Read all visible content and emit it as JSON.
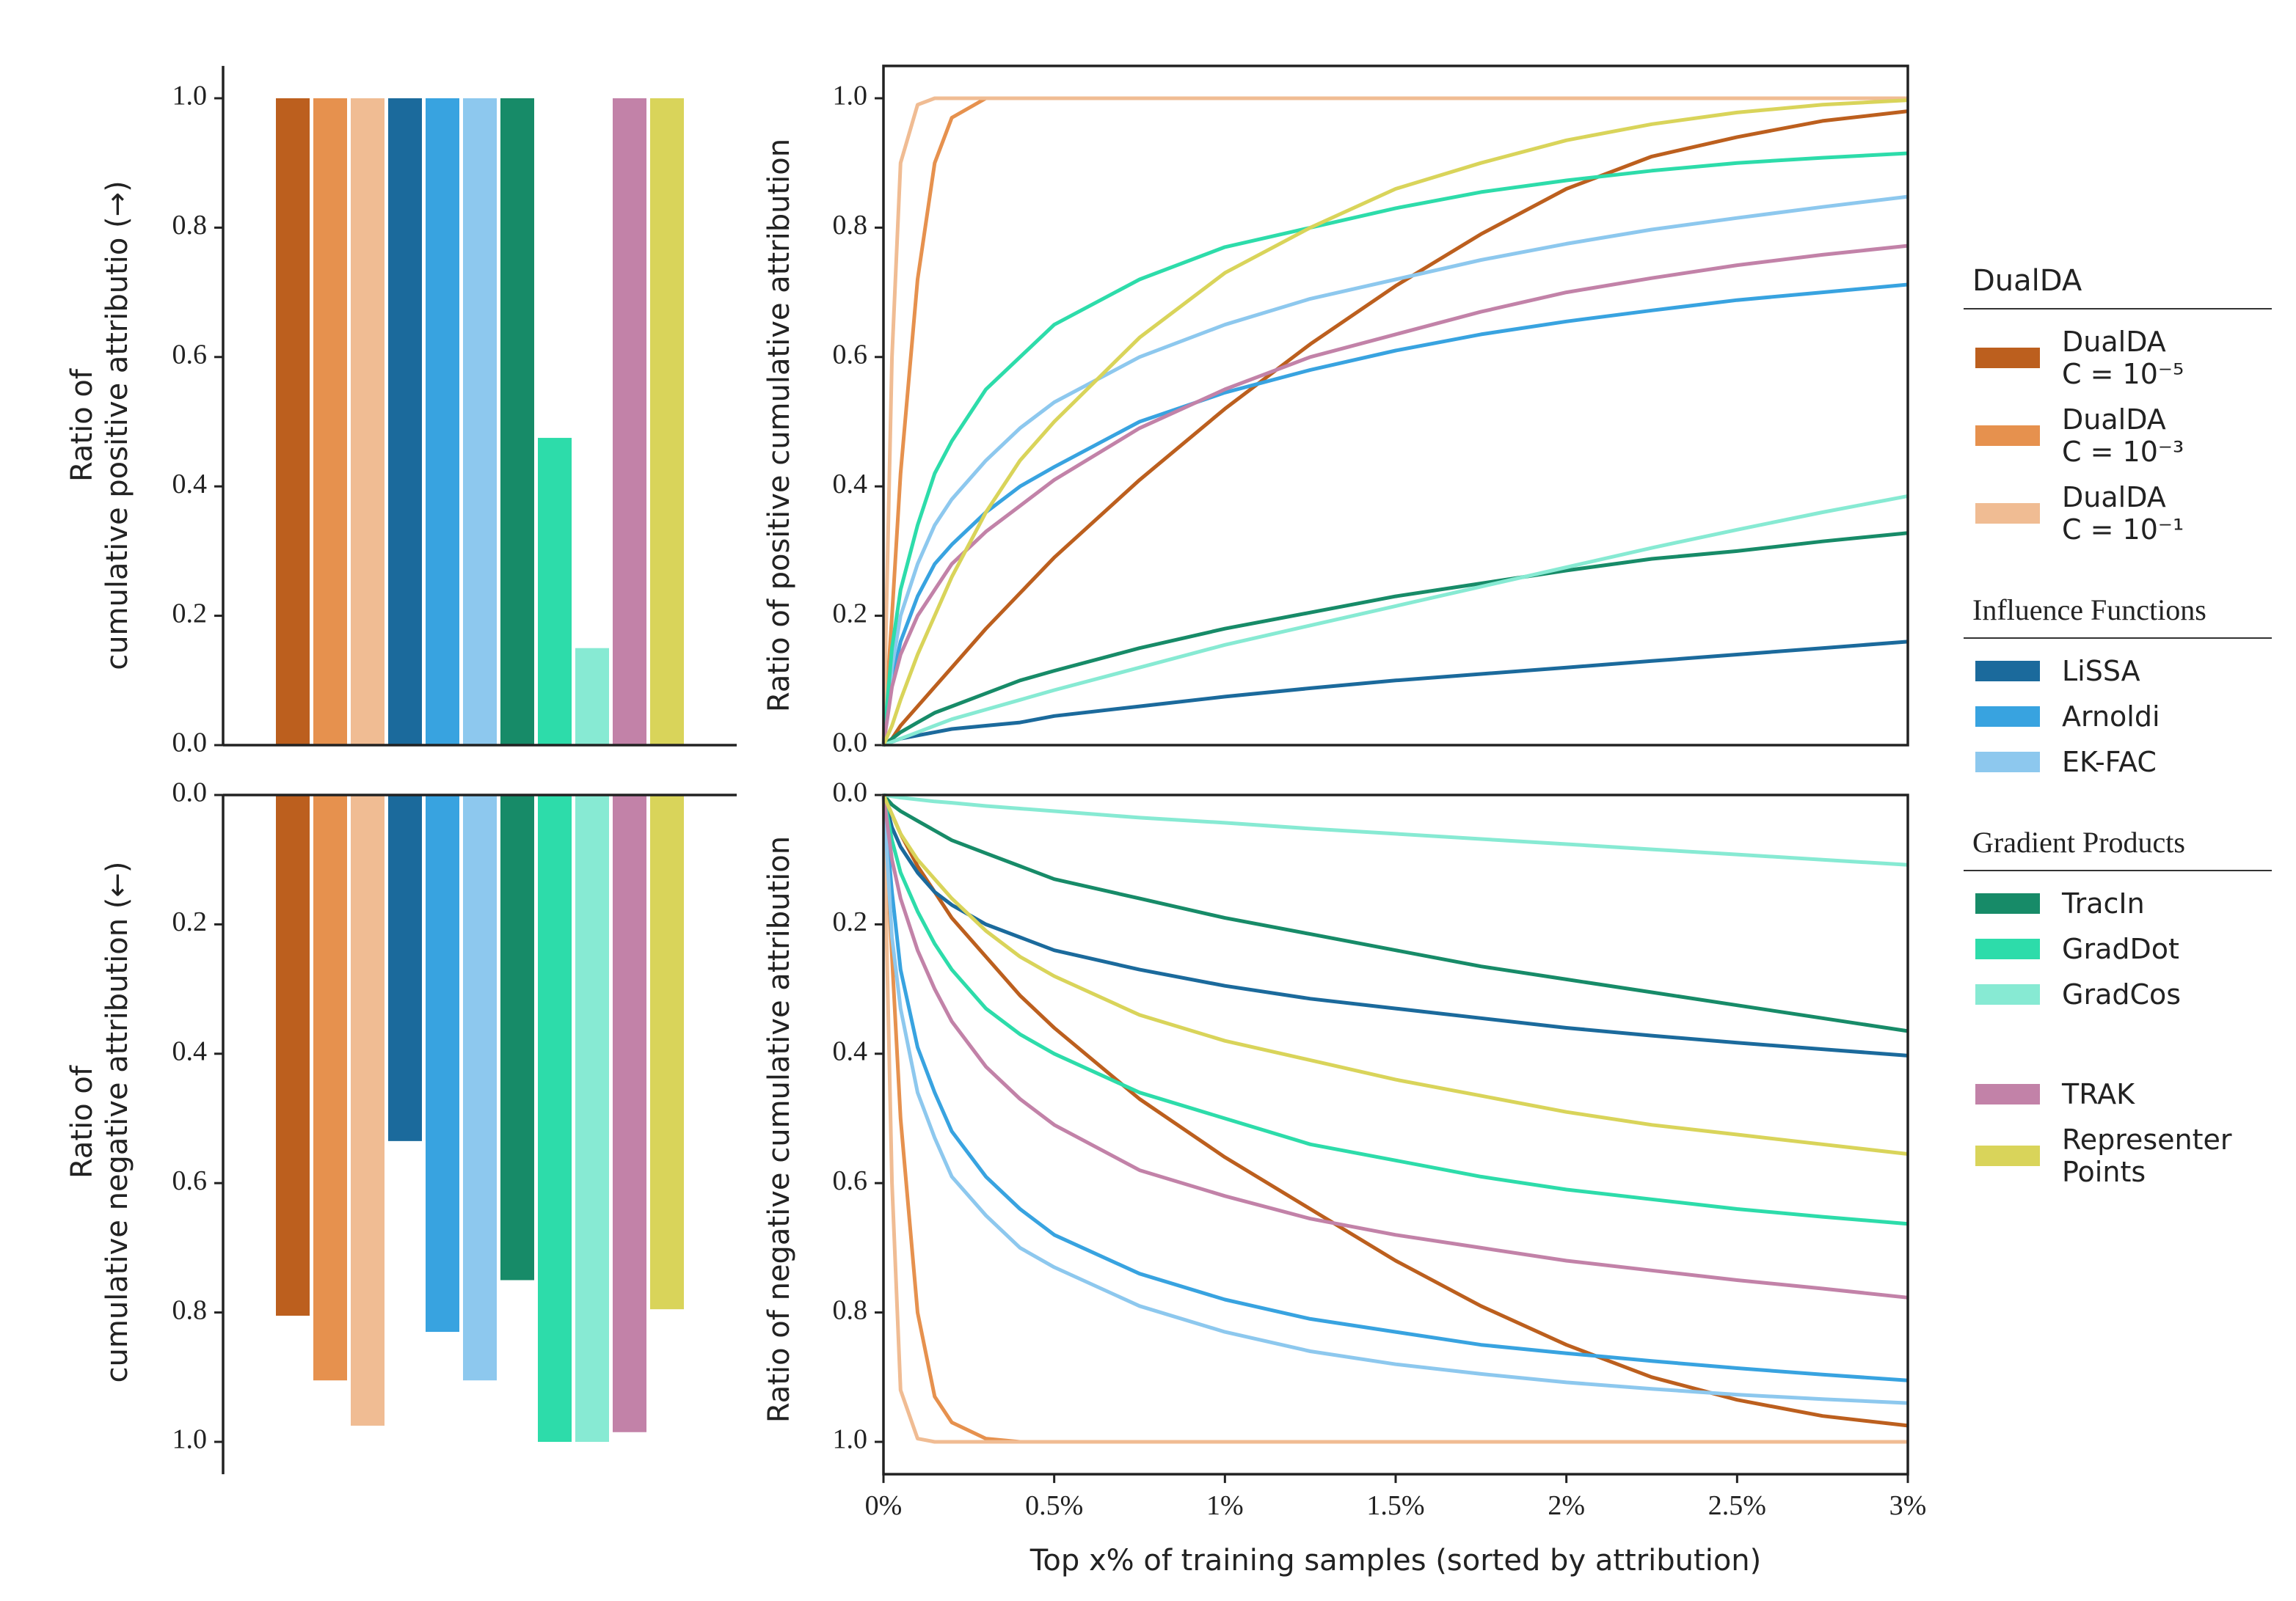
{
  "legend": [
    {
      "title": "DualDA",
      "entries": [
        {
          "name": "DualDA\nC = 10⁻⁵",
          "color": "#bc5f1e"
        },
        {
          "name": "DualDA\nC = 10⁻³",
          "color": "#e6914e"
        },
        {
          "name": "DualDA\nC = 10⁻¹",
          "color": "#f0bc93"
        }
      ]
    },
    {
      "title": "Influence Functions",
      "entries": [
        {
          "name": "LiSSA",
          "color": "#1b6a9c"
        },
        {
          "name": "Arnoldi",
          "color": "#38a3e0"
        },
        {
          "name": "EK-FAC",
          "color": "#8dc8ee"
        }
      ]
    },
    {
      "title": "Gradient Products",
      "entries": [
        {
          "name": "TracIn",
          "color": "#178b68"
        },
        {
          "name": "GradDot",
          "color": "#2ddcaa"
        },
        {
          "name": "GradCos",
          "color": "#87ead3"
        }
      ]
    },
    {
      "entries": [
        {
          "name": "TRAK",
          "color": "#c282a8"
        },
        {
          "name": "Representer\nPoints",
          "color": "#d9d45a"
        }
      ]
    }
  ],
  "chart_data": [
    {
      "type": "bar",
      "ylabel": "Ratio of\ncumulative positive attributio (→)",
      "ylim": [
        0,
        1.05
      ],
      "yticks": [
        {
          "value": 0,
          "label": "0.0"
        },
        0.2,
        0.4,
        0.6,
        0.8,
        {
          "value": 1,
          "label": "1.0"
        }
      ],
      "values": [
        1.0,
        1.0,
        1.0,
        1.0,
        1.0,
        1.0,
        1.0,
        0.475,
        0.15,
        1.0,
        1.0
      ]
    },
    {
      "type": "bar",
      "inverted": true,
      "ylabel": "Ratio of\ncumulative negative attribution (←)",
      "ylim": [
        0,
        1.05
      ],
      "yticks": [
        {
          "value": 0,
          "label": "0.0"
        },
        0.2,
        0.4,
        0.6,
        0.8,
        {
          "value": 1,
          "label": "1.0"
        }
      ],
      "values": [
        0.805,
        0.905,
        0.975,
        0.535,
        0.83,
        0.905,
        0.75,
        1.0,
        1.0,
        0.985,
        0.795
      ]
    },
    {
      "type": "line",
      "ylabel": "Ratio of positive cumulative attribution",
      "xlim": [
        0,
        3
      ],
      "ylim": [
        0,
        1.05
      ],
      "yticks": [
        {
          "value": 0,
          "label": "0.0"
        },
        0.2,
        0.4,
        0.6,
        0.8,
        {
          "value": 1,
          "label": "1.0"
        }
      ],
      "x": [
        0,
        0.025,
        0.05,
        0.1,
        0.15,
        0.2,
        0.3,
        0.4,
        0.5,
        0.75,
        1,
        1.25,
        1.5,
        1.75,
        2,
        2.25,
        2.5,
        2.75,
        3
      ],
      "series": [
        {
          "values": [
            0,
            0.01,
            0.03,
            0.06,
            0.09,
            0.12,
            0.18,
            0.235,
            0.29,
            0.41,
            0.52,
            0.62,
            0.71,
            0.79,
            0.86,
            0.91,
            0.94,
            0.965,
            0.98
          ]
        },
        {
          "values": [
            0,
            0.2,
            0.42,
            0.72,
            0.9,
            0.97,
            1,
            1,
            1,
            1,
            1,
            1,
            1,
            1,
            1,
            1,
            1,
            1,
            1
          ]
        },
        {
          "values": [
            0,
            0.6,
            0.9,
            0.99,
            1,
            1,
            1,
            1,
            1,
            1,
            1,
            1,
            1,
            1,
            1,
            1,
            1,
            1,
            1
          ]
        },
        {
          "values": [
            0,
            0.005,
            0.01,
            0.015,
            0.02,
            0.025,
            0.03,
            0.035,
            0.045,
            0.06,
            0.075,
            0.088,
            0.1,
            0.11,
            0.12,
            0.13,
            0.14,
            0.15,
            0.16
          ]
        },
        {
          "values": [
            0,
            0.1,
            0.16,
            0.23,
            0.28,
            0.31,
            0.36,
            0.4,
            0.43,
            0.5,
            0.545,
            0.58,
            0.61,
            0.635,
            0.655,
            0.672,
            0.688,
            0.7,
            0.712
          ]
        },
        {
          "values": [
            0,
            0.12,
            0.2,
            0.28,
            0.34,
            0.38,
            0.44,
            0.49,
            0.53,
            0.6,
            0.65,
            0.69,
            0.72,
            0.75,
            0.775,
            0.797,
            0.815,
            0.832,
            0.848
          ]
        },
        {
          "values": [
            0,
            0.01,
            0.02,
            0.035,
            0.05,
            0.06,
            0.08,
            0.1,
            0.115,
            0.15,
            0.18,
            0.205,
            0.23,
            0.25,
            0.27,
            0.288,
            0.3,
            0.315,
            0.328
          ]
        },
        {
          "values": [
            0,
            0.15,
            0.24,
            0.34,
            0.42,
            0.47,
            0.55,
            0.6,
            0.65,
            0.72,
            0.77,
            0.8,
            0.83,
            0.855,
            0.873,
            0.888,
            0.9,
            0.908,
            0.915
          ]
        },
        {
          "values": [
            0,
            0.005,
            0.01,
            0.02,
            0.03,
            0.04,
            0.055,
            0.07,
            0.085,
            0.12,
            0.155,
            0.185,
            0.215,
            0.245,
            0.275,
            0.305,
            0.333,
            0.36,
            0.385
          ]
        },
        {
          "values": [
            0,
            0.09,
            0.14,
            0.2,
            0.24,
            0.28,
            0.33,
            0.37,
            0.41,
            0.49,
            0.55,
            0.6,
            0.635,
            0.67,
            0.7,
            0.722,
            0.742,
            0.758,
            0.772
          ]
        },
        {
          "values": [
            0,
            0.03,
            0.07,
            0.14,
            0.2,
            0.26,
            0.36,
            0.44,
            0.5,
            0.63,
            0.73,
            0.8,
            0.86,
            0.9,
            0.935,
            0.96,
            0.978,
            0.99,
            0.997
          ]
        }
      ]
    },
    {
      "type": "line",
      "inverted": true,
      "ylabel": "Ratio of negative cumulative attribution",
      "xlabel": "Top x% of training samples (sorted by attribution)",
      "xlim": [
        0,
        3
      ],
      "ylim": [
        0,
        1.05
      ],
      "xticks": [
        {
          "value": 0,
          "label": "0%"
        },
        {
          "value": 0.5,
          "label": "0.5%"
        },
        {
          "value": 1,
          "label": "1%"
        },
        {
          "value": 1.5,
          "label": "1.5%"
        },
        {
          "value": 2,
          "label": "2%"
        },
        {
          "value": 2.5,
          "label": "2.5%"
        },
        {
          "value": 3,
          "label": "3%"
        }
      ],
      "yticks": [
        {
          "value": 0,
          "label": "0.0"
        },
        0.2,
        0.4,
        0.6,
        0.8,
        {
          "value": 1,
          "label": "1.0"
        }
      ],
      "x": [
        0,
        0.025,
        0.05,
        0.1,
        0.15,
        0.2,
        0.3,
        0.4,
        0.5,
        0.75,
        1,
        1.25,
        1.5,
        1.75,
        2,
        2.25,
        2.5,
        2.75,
        3
      ],
      "series": [
        {
          "values": [
            0,
            0.03,
            0.06,
            0.11,
            0.15,
            0.19,
            0.25,
            0.31,
            0.36,
            0.47,
            0.56,
            0.64,
            0.72,
            0.79,
            0.85,
            0.9,
            0.935,
            0.96,
            0.975
          ]
        },
        {
          "values": [
            0,
            0.25,
            0.5,
            0.8,
            0.93,
            0.97,
            0.995,
            1,
            1,
            1,
            1,
            1,
            1,
            1,
            1,
            1,
            1,
            1,
            1
          ]
        },
        {
          "values": [
            0,
            0.6,
            0.92,
            0.995,
            1,
            1,
            1,
            1,
            1,
            1,
            1,
            1,
            1,
            1,
            1,
            1,
            1,
            1,
            1
          ]
        },
        {
          "values": [
            0,
            0.05,
            0.08,
            0.12,
            0.15,
            0.17,
            0.2,
            0.22,
            0.24,
            0.27,
            0.295,
            0.315,
            0.33,
            0.345,
            0.36,
            0.372,
            0.383,
            0.393,
            0.403
          ]
        },
        {
          "values": [
            0,
            0.15,
            0.27,
            0.39,
            0.46,
            0.52,
            0.59,
            0.64,
            0.68,
            0.74,
            0.78,
            0.81,
            0.83,
            0.85,
            0.863,
            0.875,
            0.886,
            0.896,
            0.905
          ]
        },
        {
          "values": [
            0,
            0.22,
            0.33,
            0.46,
            0.53,
            0.59,
            0.65,
            0.7,
            0.73,
            0.79,
            0.83,
            0.86,
            0.88,
            0.895,
            0.908,
            0.918,
            0.927,
            0.934,
            0.94
          ]
        },
        {
          "values": [
            0,
            0.015,
            0.025,
            0.04,
            0.055,
            0.07,
            0.09,
            0.11,
            0.13,
            0.16,
            0.19,
            0.215,
            0.24,
            0.265,
            0.285,
            0.305,
            0.325,
            0.345,
            0.365
          ]
        },
        {
          "values": [
            0,
            0.07,
            0.12,
            0.18,
            0.23,
            0.27,
            0.33,
            0.37,
            0.4,
            0.46,
            0.5,
            0.54,
            0.565,
            0.59,
            0.61,
            0.625,
            0.64,
            0.652,
            0.663
          ]
        },
        {
          "values": [
            0,
            0.002,
            0.004,
            0.007,
            0.01,
            0.012,
            0.017,
            0.021,
            0.025,
            0.035,
            0.043,
            0.052,
            0.06,
            0.068,
            0.076,
            0.084,
            0.092,
            0.1,
            0.108
          ]
        },
        {
          "values": [
            0,
            0.1,
            0.16,
            0.24,
            0.3,
            0.35,
            0.42,
            0.47,
            0.51,
            0.58,
            0.62,
            0.655,
            0.68,
            0.7,
            0.72,
            0.735,
            0.75,
            0.763,
            0.777
          ]
        },
        {
          "values": [
            0,
            0.03,
            0.06,
            0.1,
            0.13,
            0.16,
            0.21,
            0.25,
            0.28,
            0.34,
            0.38,
            0.41,
            0.44,
            0.465,
            0.49,
            0.51,
            0.525,
            0.54,
            0.555
          ]
        }
      ]
    }
  ]
}
